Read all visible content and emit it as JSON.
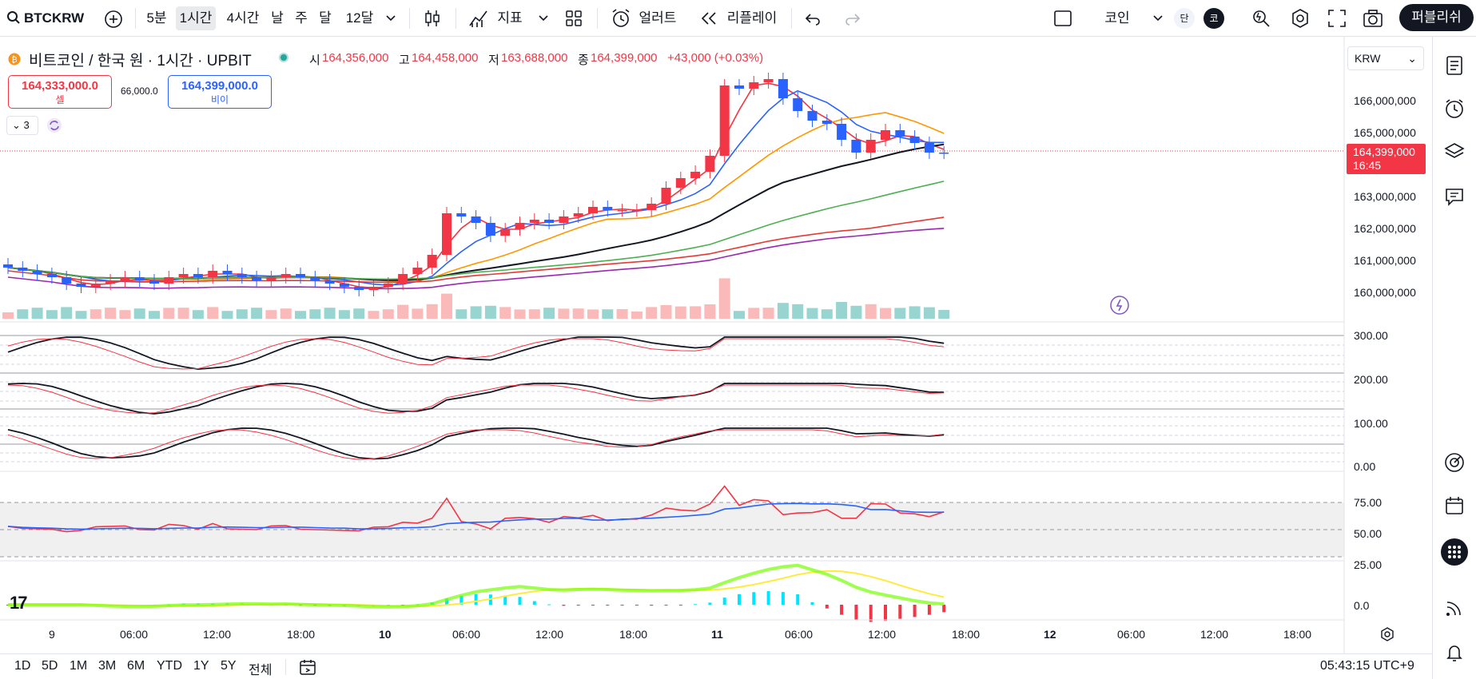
{
  "toolbar": {
    "symbol": "BTCKRW",
    "intervals": [
      "5분",
      "1시간",
      "4시간",
      "날",
      "주",
      "달",
      "12달"
    ],
    "indicators_label": "지표",
    "alert_label": "얼러트",
    "replay_label": "리플레이",
    "coin_label": "코인",
    "short_label": "단",
    "kr_label": "코",
    "publish_label": "퍼블리쉬"
  },
  "legend": {
    "title": "비트코인 / 한국 원 · 1시간 · UPBIT",
    "open_label": "시",
    "open": "164,356,000",
    "high_label": "고",
    "high": "164,458,000",
    "low_label": "저",
    "low": "163,688,000",
    "close_label": "종",
    "close": "164,399,000",
    "change": "+43,000 (+0.03%)",
    "sell_price": "164,333,000.0",
    "sell_label": "셀",
    "spread": "66,000.0",
    "buy_price": "164,399,000.0",
    "buy_label": "비이",
    "collapse_count": "3"
  },
  "currency": "KRW",
  "price_axis": [
    "166,000,000",
    "165,000,000",
    "163,000,000",
    "162,000,000",
    "161,000,000",
    "160,000,000"
  ],
  "current_price": "164,399,000",
  "countdown": "16:45",
  "stoch_axis": [
    "300.00",
    "200.00",
    "100.00",
    "0.00"
  ],
  "rsi_axis": [
    "75.00",
    "50.00",
    "25.00"
  ],
  "macd_axis": [
    "0.0"
  ],
  "time_axis": [
    "9",
    "06:00",
    "12:00",
    "18:00",
    "10",
    "06:00",
    "12:00",
    "18:00",
    "11",
    "06:00",
    "12:00",
    "18:00",
    "12",
    "06:00",
    "12:00",
    "18:00"
  ],
  "ranges": [
    "1D",
    "5D",
    "1M",
    "3M",
    "6M",
    "YTD",
    "1Y",
    "5Y",
    "전체"
  ],
  "clock": "05:43:15 UTC+9",
  "colors": {
    "up": "#f23645",
    "down": "#2962ff",
    "accent": "#131722"
  },
  "chart_data": {
    "type": "candlestick",
    "interval": "1h",
    "y_unit": "KRW",
    "close_series": [
      160800000,
      160700000,
      160600000,
      160500000,
      160300000,
      160200000,
      160300000,
      160400000,
      160500000,
      160400000,
      160300000,
      160500000,
      160600000,
      160500000,
      160700000,
      160600000,
      160500000,
      160400000,
      160500000,
      160600000,
      160500000,
      160400000,
      160300000,
      160200000,
      160100000,
      160200000,
      160300000,
      160600000,
      160800000,
      161200000,
      162500000,
      162400000,
      162200000,
      161800000,
      162000000,
      162200000,
      162300000,
      162200000,
      162400000,
      162500000,
      162700000,
      162600000,
      162600000,
      162600000,
      162800000,
      163300000,
      163600000,
      163800000,
      164300000,
      166500000,
      166400000,
      166600000,
      166700000,
      166100000,
      165700000,
      165400000,
      165300000,
      164800000,
      164400000,
      164800000,
      165100000,
      164900000,
      164700000,
      164400000,
      164399000
    ],
    "legend": []
  }
}
